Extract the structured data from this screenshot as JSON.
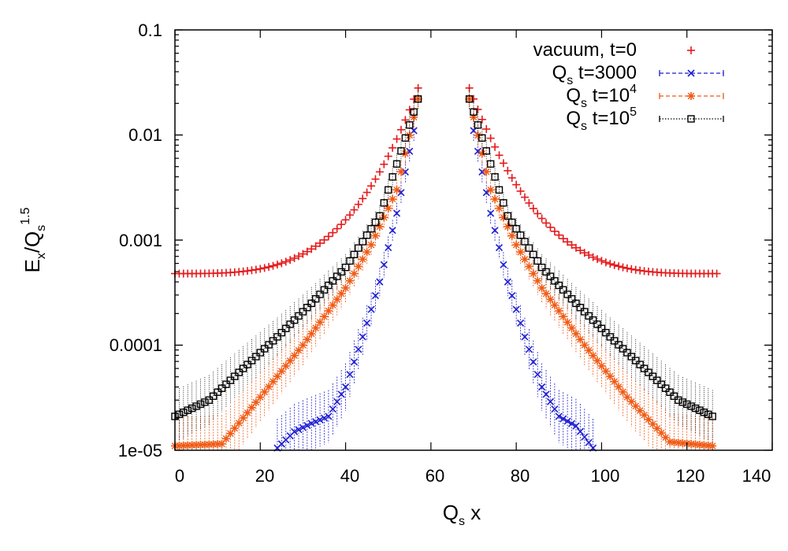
{
  "chart_data": {
    "type": "scatter",
    "title": "",
    "xlabel": {
      "main": "Q",
      "sub": "s",
      "tail": " x"
    },
    "ylabel": {
      "main": "E",
      "sub1": "x",
      "mid": "/Q",
      "sub2": "s",
      "sup": "1.5"
    },
    "xlim": [
      0,
      140
    ],
    "ylim": [
      1e-05,
      0.1
    ],
    "yscale": "log",
    "x_ticks": [
      0,
      20,
      40,
      60,
      80,
      100,
      120,
      140
    ],
    "x_tick_labels": [
      "0",
      "20",
      "40",
      "60",
      "80",
      "100",
      "120",
      "140"
    ],
    "y_ticks": [
      1e-05,
      0.0001,
      0.001,
      0.01,
      0.1
    ],
    "y_tick_labels": [
      "1e-05",
      "0.0001",
      "0.001",
      "0.01",
      "0.1"
    ],
    "legend_position": "top-right",
    "series": [
      {
        "name": "vacuum, t=0",
        "legend_parts": {
          "main": "vacuum, t=0",
          "sub": "",
          "tail": "",
          "sup": ""
        },
        "color": "#e41a1c",
        "marker": "plus",
        "line_style": "none",
        "error_bars": false,
        "left": {
          "x_start": 0,
          "x_end": 57,
          "y_start": 0.00048,
          "y_end": 0.028,
          "curve": 3.5
        },
        "right": {
          "x_start": 69,
          "x_end": 127,
          "y_start": 0.028,
          "y_end": 0.00048,
          "curve": 3.5
        }
      },
      {
        "name": "Q_s t=3000",
        "legend_parts": {
          "main": "Q",
          "sub": "s",
          "tail": " t=3000",
          "sup": ""
        },
        "color": "#1f1fd0",
        "marker": "x",
        "line_style": "dashed",
        "error_bars": true,
        "left": {
          "x_start": 24,
          "x_end": 56,
          "y_start": 1.05e-05,
          "y_end": 0.011,
          "curve": 1.0,
          "bump": [
            [
              24,
              1.05e-05
            ],
            [
              28,
              1.5e-05
            ],
            [
              32,
              1.8e-05
            ],
            [
              36,
              2.1e-05
            ],
            [
              40,
              4e-05
            ],
            [
              44,
              0.00012
            ],
            [
              48,
              0.0004
            ],
            [
              52,
              0.0018
            ],
            [
              56,
              0.011
            ]
          ]
        },
        "right": {
          "x_start": 70,
          "x_end": 98,
          "y_start": 0.011,
          "y_end": 1.05e-05,
          "curve": 1.0,
          "bump": [
            [
              70,
              0.011
            ],
            [
              74,
              0.0018
            ],
            [
              78,
              0.0004
            ],
            [
              82,
              0.00012
            ],
            [
              86,
              4e-05
            ],
            [
              90,
              2.1e-05
            ],
            [
              94,
              1.7e-05
            ],
            [
              98,
              1.05e-05
            ]
          ]
        }
      },
      {
        "name": "Q_s t=10^4",
        "legend_parts": {
          "main": "Q",
          "sub": "s",
          "tail": " t=10",
          "sup": "4"
        },
        "color": "#f05a14",
        "marker": "star",
        "line_style": "dashed",
        "error_bars": true,
        "left": {
          "x_start": 0,
          "x_end": 57,
          "y_start": 1.1e-05,
          "y_end": 0.022,
          "curve": 1.0,
          "bump": [
            [
              0,
              1.1e-05
            ],
            [
              11,
              1.15e-05
            ],
            [
              20,
              3.2e-05
            ],
            [
              30,
              0.0001
            ],
            [
              40,
              0.00035
            ],
            [
              46,
              0.0009
            ],
            [
              52,
              0.003
            ],
            [
              57,
              0.022
            ]
          ]
        },
        "right": {
          "x_start": 69,
          "x_end": 126,
          "y_start": 0.022,
          "y_end": 1.1e-05,
          "curve": 1.0,
          "bump": [
            [
              69,
              0.022
            ],
            [
              74,
              0.003
            ],
            [
              80,
              0.0009
            ],
            [
              86,
              0.00035
            ],
            [
              96,
              0.0001
            ],
            [
              106,
              3.2e-05
            ],
            [
              116,
              1.2e-05
            ],
            [
              126,
              1.1e-05
            ]
          ]
        }
      },
      {
        "name": "Q_s t=10^5",
        "legend_parts": {
          "main": "Q",
          "sub": "s",
          "tail": " t=10",
          "sup": "5"
        },
        "color": "#000000",
        "marker": "square",
        "line_style": "dotted",
        "error_bars": true,
        "left": {
          "x_start": 0,
          "x_end": 57,
          "y_start": 2.1e-05,
          "y_end": 0.022,
          "curve": 1.0,
          "bump": [
            [
              0,
              2.1e-05
            ],
            [
              8,
              3e-05
            ],
            [
              16,
              6e-05
            ],
            [
              24,
              0.00012
            ],
            [
              32,
              0.00025
            ],
            [
              40,
              0.00055
            ],
            [
              48,
              0.0017
            ],
            [
              57,
              0.022
            ]
          ]
        },
        "right": {
          "x_start": 69,
          "x_end": 126,
          "y_start": 0.022,
          "y_end": 2.1e-05,
          "curve": 1.0,
          "bump": [
            [
              69,
              0.022
            ],
            [
              78,
              0.0017
            ],
            [
              86,
              0.00055
            ],
            [
              94,
              0.00025
            ],
            [
              102,
              0.00012
            ],
            [
              110,
              6e-05
            ],
            [
              118,
              3e-05
            ],
            [
              126,
              2.1e-05
            ]
          ]
        }
      }
    ]
  }
}
